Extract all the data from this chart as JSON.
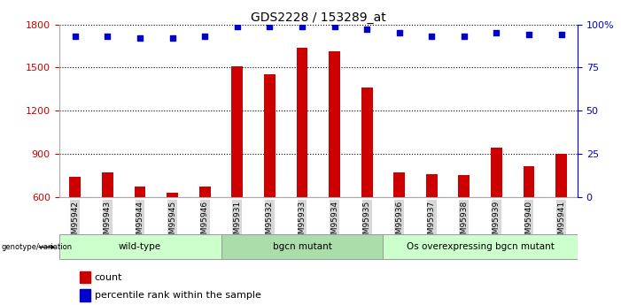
{
  "title": "GDS2228 / 153289_at",
  "samples": [
    "GSM95942",
    "GSM95943",
    "GSM95944",
    "GSM95945",
    "GSM95946",
    "GSM95931",
    "GSM95932",
    "GSM95933",
    "GSM95934",
    "GSM95935",
    "GSM95936",
    "GSM95937",
    "GSM95938",
    "GSM95939",
    "GSM95940",
    "GSM95941"
  ],
  "counts": [
    740,
    770,
    670,
    630,
    670,
    1510,
    1450,
    1640,
    1610,
    1360,
    770,
    760,
    750,
    940,
    810,
    900
  ],
  "percentile_ranks": [
    93,
    93,
    92,
    92,
    93,
    99,
    99,
    99,
    99,
    97,
    95,
    93,
    93,
    95,
    94,
    94
  ],
  "ylim_left": [
    600,
    1800
  ],
  "ylim_right": [
    0,
    100
  ],
  "yticks_left": [
    600,
    900,
    1200,
    1500,
    1800
  ],
  "yticks_right": [
    0,
    25,
    50,
    75,
    100
  ],
  "group_labels": [
    "wild-type",
    "bgcn mutant",
    "Os overexpressing bgcn mutant"
  ],
  "group_ranges": [
    [
      0,
      4
    ],
    [
      5,
      9
    ],
    [
      10,
      15
    ]
  ],
  "group_colors_alt": [
    "#ccffcc",
    "#aaddaa",
    "#ccffcc"
  ],
  "bar_color": "#cc0000",
  "dot_color": "#0000cc",
  "background_color": "#ffffff",
  "grid_color": "#000000",
  "left_axis_color": "#cc0000",
  "right_axis_color": "#0000cc",
  "xticklabel_bg": "#dddddd",
  "bar_width": 0.35,
  "dot_size": 18
}
